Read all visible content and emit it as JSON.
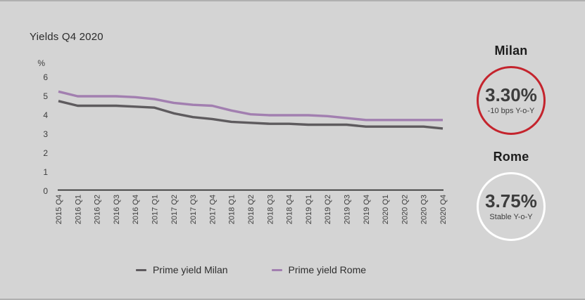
{
  "title": "Yields Q4 2020",
  "chart_data": {
    "type": "line",
    "title": "Yields Q4 2020",
    "y_axis_unit_label": "%",
    "ylim": [
      0,
      6
    ],
    "y_ticks": [
      0,
      1,
      2,
      3,
      4,
      5,
      6
    ],
    "grid": false,
    "legend_position": "bottom",
    "categories": [
      "2015 Q4",
      "2016 Q1",
      "2016 Q2",
      "2016 Q3",
      "2016 Q4",
      "2017 Q1",
      "2017 Q2",
      "2017 Q3",
      "2017 Q4",
      "2018 Q1",
      "2018 Q2",
      "2018 Q3",
      "2018 Q4",
      "2019 Q1",
      "2019 Q2",
      "2019 Q3",
      "2019 Q4",
      "2020 Q1",
      "2020 Q2",
      "2020 Q3",
      "2020 Q4"
    ],
    "series": [
      {
        "name": "Prime yield Milan",
        "color": "#5e5b5e",
        "values": [
          4.75,
          4.5,
          4.5,
          4.5,
          4.45,
          4.4,
          4.1,
          3.9,
          3.8,
          3.65,
          3.6,
          3.55,
          3.55,
          3.5,
          3.5,
          3.5,
          3.4,
          3.4,
          3.4,
          3.4,
          3.3
        ]
      },
      {
        "name": "Prime yield Rome",
        "color": "#a27fb0",
        "values": [
          5.25,
          5.0,
          5.0,
          5.0,
          4.95,
          4.85,
          4.65,
          4.55,
          4.5,
          4.25,
          4.05,
          4.0,
          4.0,
          4.0,
          3.95,
          3.85,
          3.75,
          3.75,
          3.75,
          3.75,
          3.75
        ]
      }
    ]
  },
  "kpi_panels": [
    {
      "city": "Milan",
      "value": "3.30%",
      "delta": "-10 bps Y-o-Y",
      "ring_color": "#c4242d"
    },
    {
      "city": "Rome",
      "value": "3.75%",
      "delta": "Stable Y-o-Y",
      "ring_color": "#ffffff"
    }
  ],
  "colors": {
    "background": "#d4d4d4",
    "axis": "#1a1a1a",
    "tick_text": "#3d3d3d",
    "milan_line": "#5e5b5e",
    "rome_line": "#a27fb0",
    "milan_ring": "#c4242d",
    "rome_ring": "#ffffff"
  }
}
